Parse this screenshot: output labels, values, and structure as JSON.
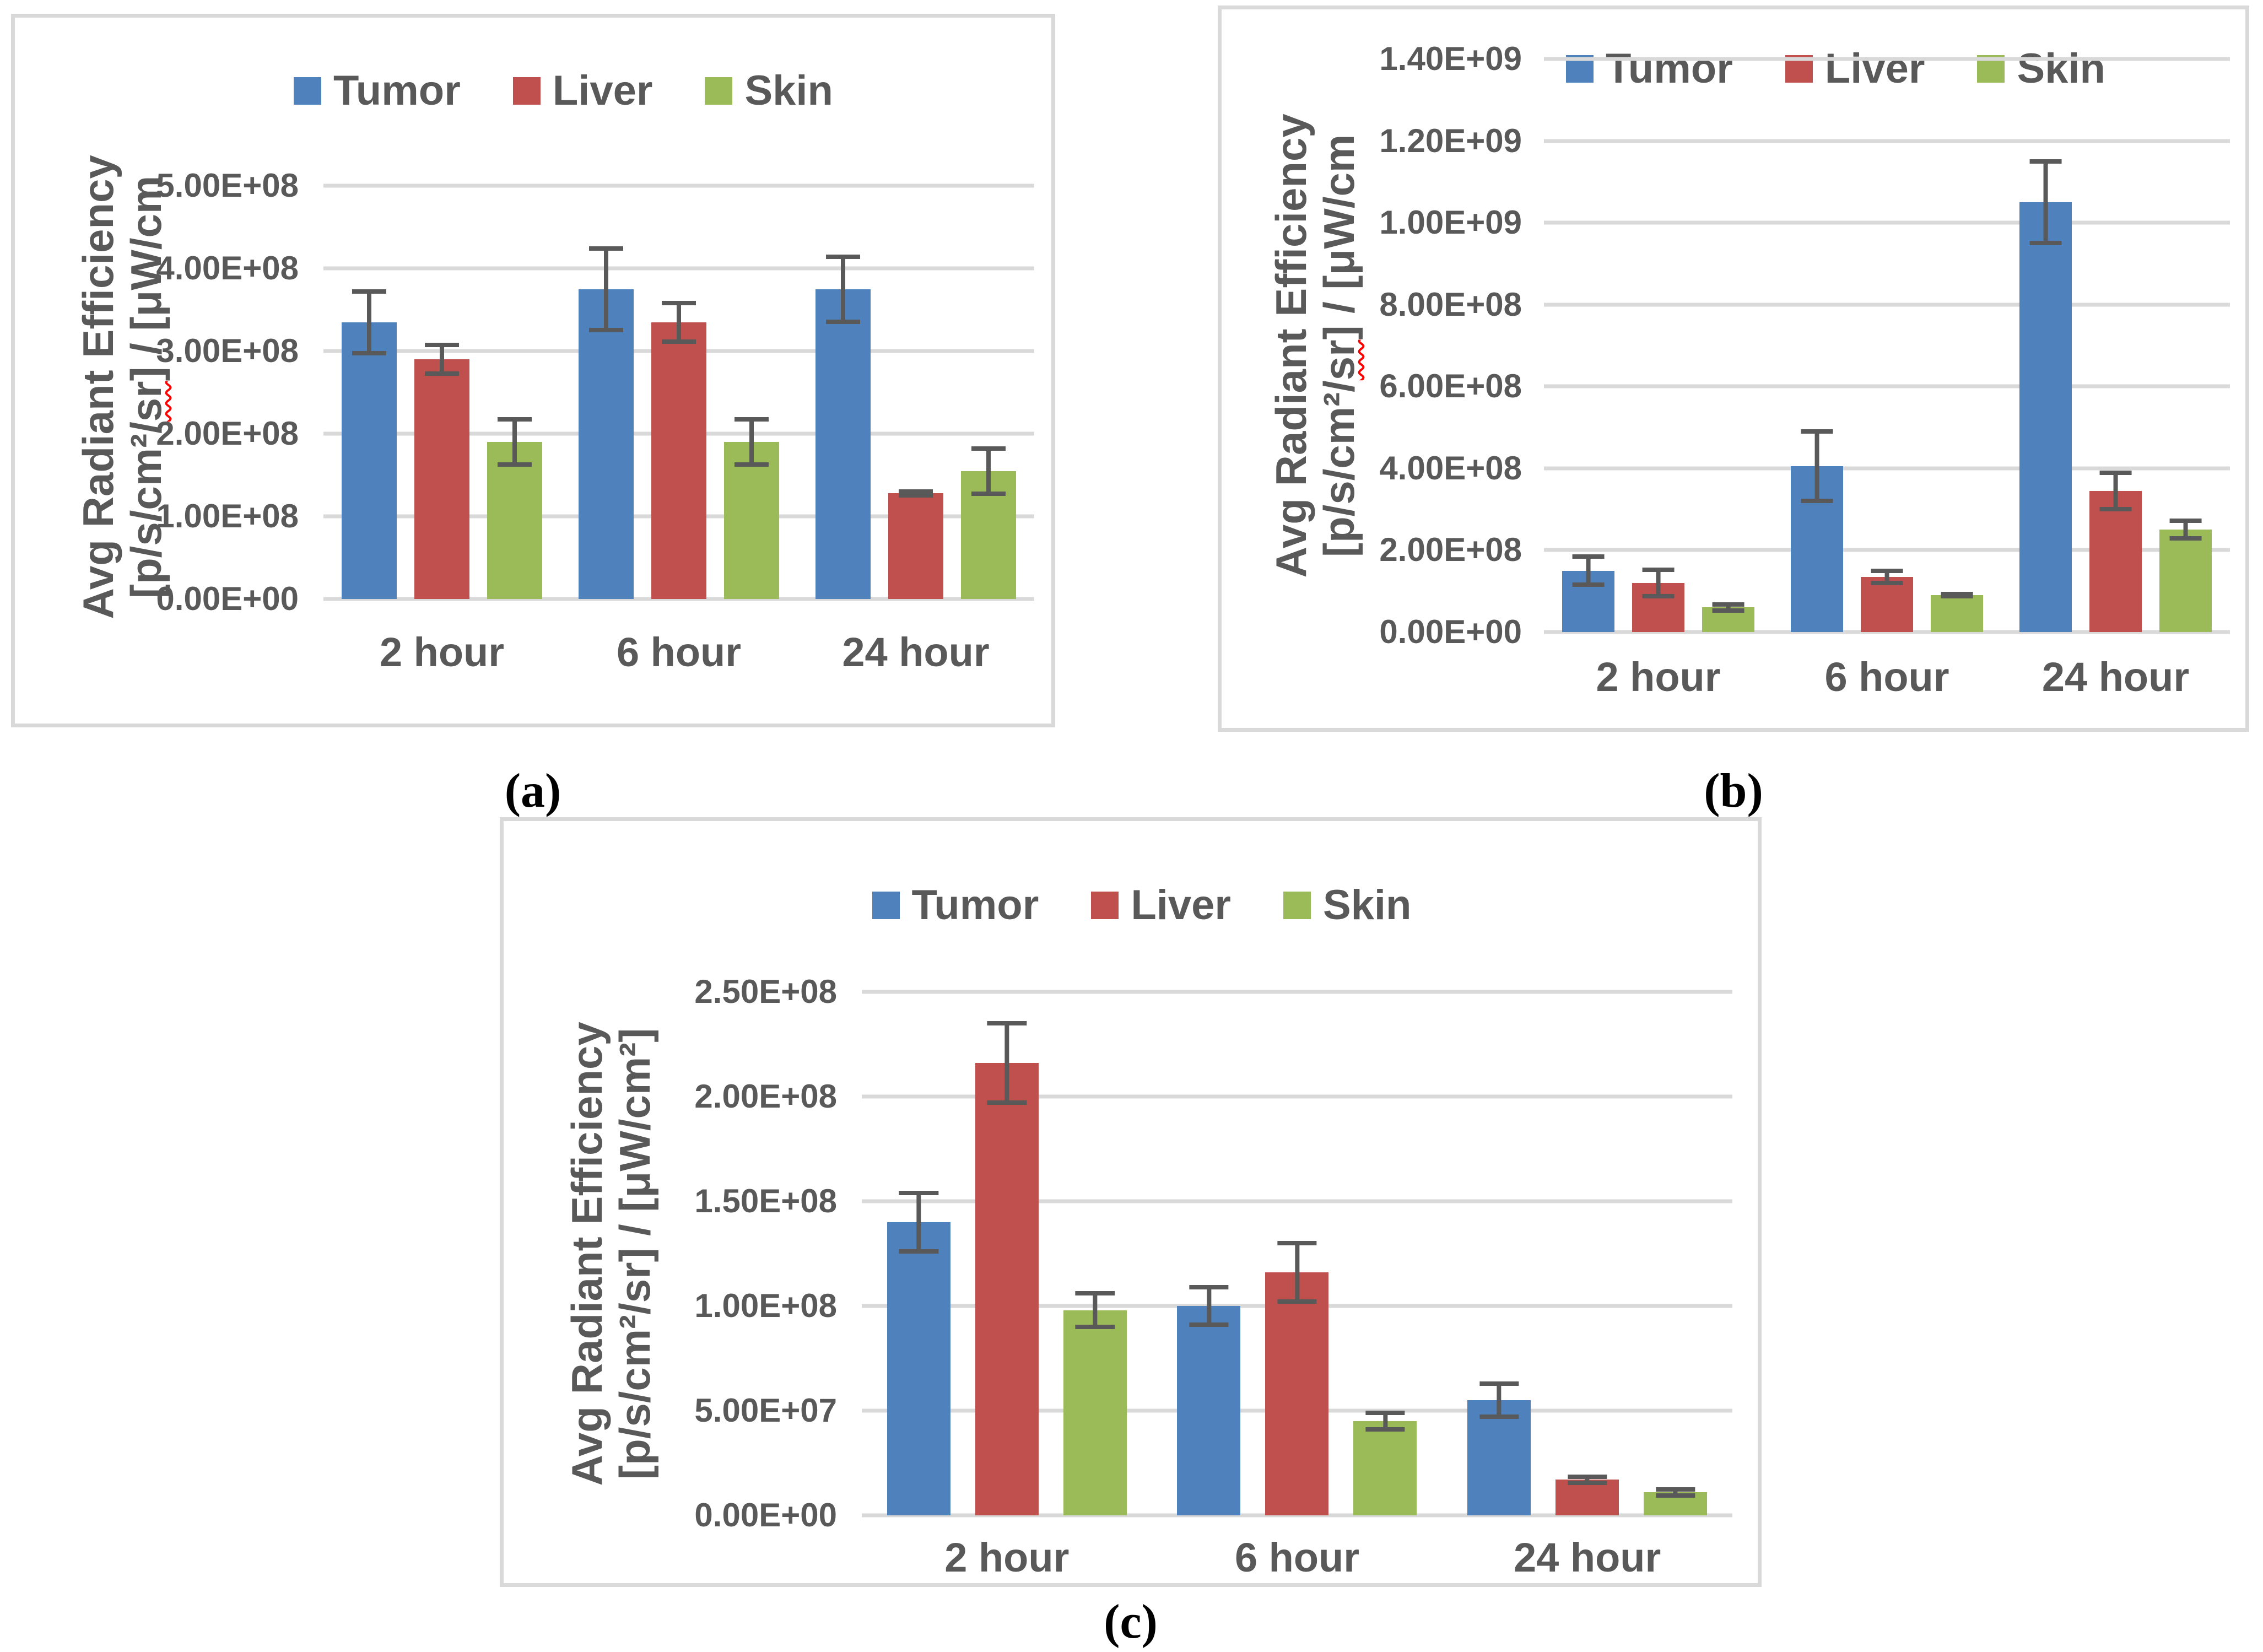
{
  "figure": {
    "captions": {
      "a": "(a)",
      "b": "(b)",
      "c": "(c)"
    }
  },
  "colors": {
    "tumor": "#4F81BD",
    "liver": "#C0504D",
    "skin": "#9BBB59",
    "axis_text": "#595959",
    "gridline": "#D9D9D9",
    "panel_border": "#D9D9D9",
    "error_bar": "#595959",
    "spellcheck_underline": "#FF0000"
  },
  "chart_data": [
    {
      "id": "a",
      "type": "bar",
      "title": "",
      "legend": [
        "Tumor",
        "Liver",
        "Skin"
      ],
      "legend_position": "top-center",
      "ylabel_line1": "Avg Radiant Efficiency",
      "ylabel2_pre": "[p/s/cm²/",
      "ylabel2_flag": "sr",
      "ylabel2_post": "] / [μW/cm",
      "categories": [
        "2 hour",
        "6 hour",
        "24 hour"
      ],
      "xlabel": "",
      "ylim": [
        0,
        500000000.0
      ],
      "ytick_labels": [
        "0.00E+00",
        "1.00E+08",
        "2.00E+08",
        "3.00E+08",
        "4.00E+08",
        "5.00E+08"
      ],
      "grid": true,
      "series": [
        {
          "name": "Tumor",
          "values": [
            335000000.0,
            375000000.0,
            375000000.0
          ],
          "errors": [
            40000000.0,
            52000000.0,
            42000000.0
          ]
        },
        {
          "name": "Liver",
          "values": [
            290000000.0,
            335000000.0,
            128000000.0
          ],
          "errors": [
            20000000.0,
            26000000.0,
            5000000.0
          ]
        },
        {
          "name": "Skin",
          "values": [
            190000000.0,
            190000000.0,
            155000000.0
          ],
          "errors": [
            30000000.0,
            30000000.0,
            30000000.0
          ]
        }
      ]
    },
    {
      "id": "b",
      "type": "bar",
      "title": "",
      "legend": [
        "Tumor",
        "Liver",
        "Skin"
      ],
      "legend_position": "top-right-of-axis",
      "ylabel_line1": "Avg Radiant Efficiency",
      "ylabel2_pre": "[p/s/cm²/",
      "ylabel2_flag": "sr",
      "ylabel2_post": "] / [μW/cm",
      "categories": [
        "2 hour",
        "6 hour",
        "24 hour"
      ],
      "xlabel": "",
      "ylim": [
        0,
        1400000000.0
      ],
      "ytick_labels": [
        "0.00E+00",
        "2.00E+08",
        "4.00E+08",
        "6.00E+08",
        "8.00E+08",
        "1.00E+09",
        "1.20E+09",
        "1.40E+09"
      ],
      "grid": true,
      "series": [
        {
          "name": "Tumor",
          "values": [
            150000000.0,
            405000000.0,
            1050000000.0
          ],
          "errors": [
            40000000.0,
            90000000.0,
            105000000.0
          ]
        },
        {
          "name": "Liver",
          "values": [
            120000000.0,
            135000000.0,
            345000000.0
          ],
          "errors": [
            38000000.0,
            20000000.0,
            50000000.0
          ]
        },
        {
          "name": "Skin",
          "values": [
            60000000.0,
            90000000.0,
            250000000.0
          ],
          "errors": [
            13000000.0,
            8000000.0,
            27000000.0
          ]
        }
      ]
    },
    {
      "id": "c",
      "type": "bar",
      "title": "",
      "legend": [
        "Tumor",
        "Liver",
        "Skin"
      ],
      "legend_position": "top-center",
      "ylabel_line1": "Avg Radiant Efficiency",
      "ylabel2_pre": "[p/s/cm²/sr] / [μW/cm²]",
      "ylabel2_flag": "",
      "ylabel2_post": "",
      "categories": [
        "2 hour",
        "6 hour",
        "24 hour"
      ],
      "xlabel": "",
      "ylim": [
        0,
        250000000.0
      ],
      "ytick_labels": [
        "0.00E+00",
        "5.00E+07",
        "1.00E+08",
        "1.50E+08",
        "2.00E+08",
        "2.50E+08"
      ],
      "grid": true,
      "series": [
        {
          "name": "Tumor",
          "values": [
            140000000.0,
            100000000.0,
            55000000.0
          ],
          "errors": [
            15000000.0,
            10000000.0,
            9000000.0
          ]
        },
        {
          "name": "Liver",
          "values": [
            216000000.0,
            116000000.0,
            17000000.0
          ],
          "errors": [
            20000000.0,
            15000000.0,
            2500000.0
          ]
        },
        {
          "name": "Skin",
          "values": [
            98000000.0,
            45000000.0,
            11000000.0
          ],
          "errors": [
            9000000.0,
            5000000.0,
            2500000.0
          ]
        }
      ]
    }
  ]
}
